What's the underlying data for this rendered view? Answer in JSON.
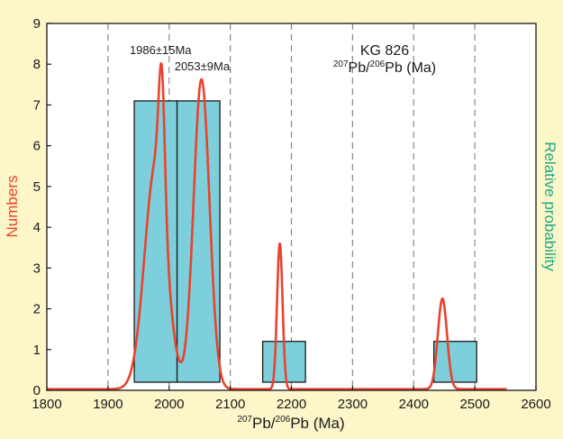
{
  "colors": {
    "background": "#fdf6c8",
    "plot_background": "#ffffff",
    "bar_fill": "#7dcfdc",
    "bar_stroke": "#1a1a1a",
    "curve": "#e8432e",
    "left_label": "#e8432e",
    "right_label": "#1aaa86",
    "grid": "#888888"
  },
  "chart_data": {
    "type": "bar",
    "title": "KG 826",
    "subtitle": {
      "sup1": "207",
      "mid": "Pb/",
      "sup2": "206",
      "tail": "Pb (Ma)"
    },
    "xlabel": {
      "sup1": "207",
      "mid": "Pb/",
      "sup2": "206",
      "tail": "Pb (Ma)"
    },
    "ylabel": "Numbers",
    "y2label": "Relative probability",
    "xlim": [
      1800,
      2600
    ],
    "ylim": [
      0,
      9
    ],
    "xticks": [
      "1800",
      "1900",
      "2000",
      "2100",
      "2200",
      "2300",
      "2400",
      "2500",
      "2600"
    ],
    "yticks": [
      "0",
      "1",
      "2",
      "3",
      "4",
      "5",
      "6",
      "7",
      "8",
      "9"
    ],
    "grid": "vertical dashed lines at 1900–2500",
    "grid_x": [
      1900,
      2000,
      2100,
      2200,
      2300,
      2400,
      2500
    ],
    "bins": [
      {
        "x0": 1943,
        "x1": 2013,
        "value": 7.1
      },
      {
        "x0": 2013,
        "x1": 2083,
        "value": 7.1
      },
      {
        "x0": 2153,
        "x1": 2223,
        "value": 1.2
      },
      {
        "x0": 2433,
        "x1": 2503,
        "value": 1.2
      }
    ],
    "probability_curve": {
      "baseline": 0.03,
      "range": [
        1800,
        2552
      ],
      "peaks": [
        {
          "center": 1978,
          "sigma": 18,
          "height": 5.5
        },
        {
          "center": 1988,
          "sigma": 5,
          "height": 3.2
        },
        {
          "center": 2053,
          "sigma": 13,
          "height": 7.6
        },
        {
          "center": 2181,
          "sigma": 4.5,
          "height": 3.57
        },
        {
          "center": 2447,
          "sigma": 7.5,
          "height": 2.22
        }
      ]
    },
    "annotations": [
      {
        "text": "1986±15Ma",
        "x": 1986,
        "y": 8.25
      },
      {
        "text": "2053±9Ma",
        "x": 2054,
        "y": 7.85
      }
    ]
  }
}
